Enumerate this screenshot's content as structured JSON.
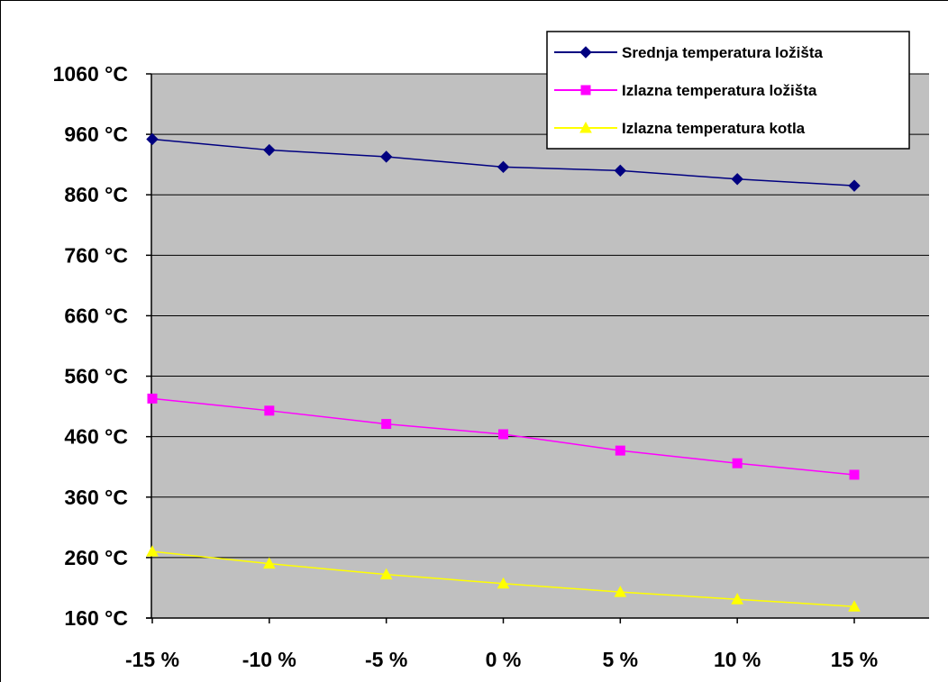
{
  "chart_data": {
    "type": "line",
    "title": "",
    "xlabel": "",
    "ylabel": "",
    "categories": [
      "-15 %",
      "-10 %",
      "-5 %",
      "0 %",
      "5 %",
      "10 %",
      "15 %"
    ],
    "y_ticks": [
      "160 °C",
      "260 °C",
      "360 °C",
      "460 °C",
      "560 °C",
      "660 °C",
      "760 °C",
      "860 °C",
      "960 °C",
      "1060 °C"
    ],
    "ylim": [
      160,
      1060
    ],
    "y_unit": "°C",
    "grid": true,
    "legend_position": "top-right",
    "plot_background": "#c0c0c0",
    "series": [
      {
        "name": "Srednja temperatura ložišta",
        "color": "#000080",
        "marker": "diamond",
        "values": [
          952,
          934,
          923,
          906,
          900,
          886,
          875
        ]
      },
      {
        "name": "Izlazna temperatura ložišta",
        "color": "#ff00ff",
        "marker": "square",
        "values": [
          523,
          503,
          481,
          464,
          437,
          416,
          397
        ]
      },
      {
        "name": "Izlazna temperatura kotla",
        "color": "#ffff00",
        "marker": "triangle",
        "values": [
          270,
          250,
          232,
          217,
          203,
          191,
          179
        ]
      }
    ]
  }
}
